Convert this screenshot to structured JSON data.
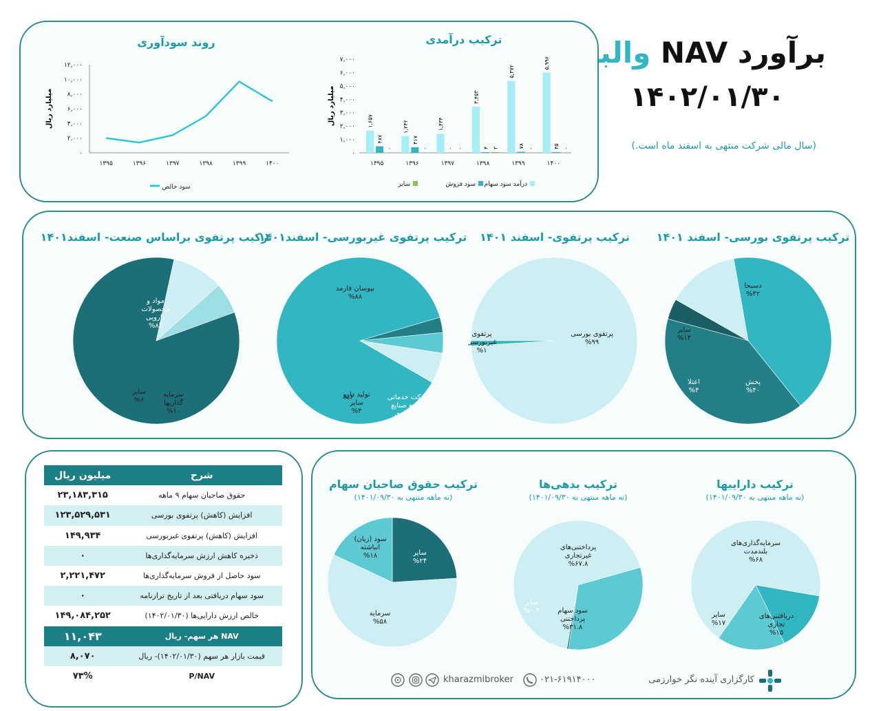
{
  "header": {
    "title_part1": "برآورد NAV",
    "title_part2": "والبر",
    "date": "۱۴۰۲/۰۱/۳۰",
    "note": "(سال مالی شرکت منتهی به اسفند ماه است.)"
  },
  "colors": {
    "dark": "#1d6f77",
    "teal": "#31b6c2",
    "light": "#cdeef2",
    "mid": "#5cc9d3",
    "green": "#8bc34a",
    "line": "#35c3d6"
  },
  "chart_data": [
    {
      "id": "profit_trend",
      "type": "line",
      "title": "روند سودآوری",
      "ylabel": "میلیارد ریال",
      "ylim": [
        0,
        12000
      ],
      "yticks": [
        "۰",
        "۲,۰۰۰",
        "۴,۰۰۰",
        "۶,۰۰۰",
        "۸,۰۰۰",
        "۱۰,۰۰۰",
        "۱۲,۰۰۰"
      ],
      "categories": [
        "۱۳۹۵",
        "۱۳۹۶",
        "۱۳۹۷",
        "۱۳۹۸",
        "۱۳۹۹",
        "۱۴۰۰"
      ],
      "series": [
        {
          "name": "سود خالص",
          "values": [
            2000,
            1400,
            2400,
            5000,
            9700,
            7000
          ]
        }
      ]
    },
    {
      "id": "income_composition",
      "type": "bar",
      "title": "ترکیب درآمدی",
      "ylabel": "میلیارد ریال",
      "ylim": [
        0,
        7000
      ],
      "yticks": [
        "۰",
        "۱,۰۰۰",
        "۲,۰۰۰",
        "۳,۰۰۰",
        "۴,۰۰۰",
        "۵,۰۰۰",
        "۶,۰۰۰",
        "۷,۰۰۰"
      ],
      "categories": [
        "۱۳۹۵",
        "۱۳۹۶",
        "۱۳۹۷",
        "۱۳۹۸",
        "۱۳۹۹",
        "۱۴۰۰"
      ],
      "series": [
        {
          "name": "درآمد سود سهام",
          "values": [
            1657,
            1242,
            1434,
            3453,
            5372,
            5996
          ],
          "labels": [
            "۱,۶۵۷",
            "۱,۲۴۲",
            "۱,۴۳۴",
            "۳,۴۵۳",
            "۵,۳۷۲",
            "۵,۹۹۶"
          ]
        },
        {
          "name": "سود فروش",
          "values": [
            487,
            417,
            0,
            4,
            78,
            45
          ],
          "labels": [
            "۴۸۷",
            "۴۱۷",
            "۰",
            "۴",
            "۷۸",
            "۴۵"
          ]
        },
        {
          "name": "سایر",
          "values": [
            0,
            0,
            0,
            2,
            0,
            0
          ],
          "labels": [
            "۰",
            "۰",
            "۰",
            "۲",
            "۰",
            "۰"
          ]
        }
      ]
    },
    {
      "id": "listed_portfolio",
      "type": "pie",
      "title": "ترکیب پرتفوی بورسی- اسفند ۱۴۰۱",
      "slices": [
        {
          "label": "دسبحا",
          "pct": "%۴۲",
          "value": 42,
          "color": "#31b6c2"
        },
        {
          "label": "پخش",
          "pct": "%۴۰",
          "value": 40,
          "color": "#237f87"
        },
        {
          "label": "اعتلا",
          "pct": "%۴",
          "value": 4,
          "color": "#1a5d62"
        },
        {
          "label": "سایر",
          "pct": "%۱۴",
          "value": 14,
          "color": "#cdeef2"
        }
      ]
    },
    {
      "id": "portfolio",
      "type": "pie",
      "title": "ترکیب پرتفوی- اسفند ۱۴۰۱",
      "slices": [
        {
          "label": "پرتفوی بورسی",
          "pct": "%۹۹",
          "value": 99,
          "color": "#cdeef2"
        },
        {
          "label": "پرتفوی غیربورسی",
          "pct": "%۱",
          "value": 1,
          "color": "#31b6c2"
        }
      ]
    },
    {
      "id": "unlisted_portfolio",
      "type": "pie",
      "title": "ترکیب پرتفوی غیربورسی- اسفند۱۴۰۱",
      "slices": [
        {
          "label": "بیوسان فارمد",
          "pct": "%۸۸",
          "value": 88,
          "color": "#31b6c2"
        },
        {
          "label": "شرکت خدماتی مجتمع صنایع داروسازی",
          "pct": "%۳",
          "value": 3,
          "color": "#237f87"
        },
        {
          "label": "تولید دارو سایر",
          "pct": "%۴",
          "value": 4,
          "color": "#5cc9d3"
        },
        {
          "label": "",
          "pct": "%۶",
          "value": 6,
          "color": "#cdeef2"
        }
      ]
    },
    {
      "id": "industry_portfolio",
      "type": "pie",
      "title": "ترکیب پرتفوی براساس صنعت- اسفند۱۴۰۱",
      "slices": [
        {
          "label": "مواد و محصولات دارویی",
          "pct": "%۸۴",
          "value": 84,
          "color": "#1d6f77"
        },
        {
          "label": "سرمایه گذاریها",
          "pct": "%۱۰",
          "value": 10,
          "color": "#cdeef2"
        },
        {
          "label": "سایر",
          "pct": "%۶",
          "value": 6,
          "color": "#9ddde4"
        }
      ]
    },
    {
      "id": "assets",
      "type": "pie",
      "title": "ترکیب داراییها",
      "subtitle": "(نه ماهه منتهی به ۱۴۰۱/۰۹/۳۰)",
      "slices": [
        {
          "label": "سرمایه‌گذاری‌های بلندمدت",
          "pct": "%۶۸",
          "value": 68,
          "color": "#cdeef2"
        },
        {
          "label": "دریافتنی‌های تجاری",
          "pct": "%۱۵",
          "value": 15,
          "color": "#31b6c2"
        },
        {
          "label": "سایر",
          "pct": "%۱۷",
          "value": 17,
          "color": "#5cc9d3"
        }
      ]
    },
    {
      "id": "liabilities",
      "type": "pie",
      "title": "ترکیب بدهی‌ها",
      "subtitle": "(نه ماهه منتهی به ۱۴۰۱/۰۹/۳۰)",
      "slices": [
        {
          "label": "پرداختنی‌های غیرتجاری",
          "pct": "%۶۷.۸",
          "value": 67.8,
          "color": "#cdeef2"
        },
        {
          "label": "سود سهام پرداختنی",
          "pct": "%۳۱.۸",
          "value": 31.8,
          "color": "#5cc9d3"
        },
        {
          "label": "سایر",
          "pct": "%۰.۴",
          "value": 0.4,
          "color": "#237f87"
        }
      ]
    },
    {
      "id": "equity",
      "type": "pie",
      "title": "ترکیب حقوق صاحبان سهام",
      "subtitle": "(نه ماهه منتهی به ۱۴۰۱/۰۹/۳۰)",
      "slices": [
        {
          "label": "سایر",
          "pct": "%۲۴",
          "value": 24,
          "color": "#1d6f77"
        },
        {
          "label": "سرمایه",
          "pct": "%۵۸",
          "value": 58,
          "color": "#cdeef2"
        },
        {
          "label": "سود (زیان) انباشته",
          "pct": "%۱۸",
          "value": 18,
          "color": "#5cc9d3"
        }
      ]
    }
  ],
  "nav_table": {
    "headers": [
      "شرح",
      "میلیون ریال"
    ],
    "rows": [
      {
        "label": "حقوق صاحبان سهام ۹ ماهه",
        "value": "۲۳,۱۸۳,۳۱۵"
      },
      {
        "label": "افزایش (کاهش) پرتفوی بورسی",
        "value": "۱۲۳,۵۲۹,۵۳۱"
      },
      {
        "label": "افزایش (کاهش) پرتفوی غیربورسی",
        "value": "۱۴۹,۹۳۴"
      },
      {
        "label": "ذخیره کاهش ارزش سرمایه‌گذاری‌ها",
        "value": "۰"
      },
      {
        "label": "سود حاصل از فروش سرمایه‌گذاری‌ها",
        "value": "۲,۲۲۱,۴۷۲"
      },
      {
        "label": "سود سهام دریافتی بعد از تاریخ ترازنامه",
        "value": "۰"
      },
      {
        "label": "خالص ارزش دارایی‌ها (۱۴۰۲/۰۱/۳۰)",
        "value": "۱۴۹,۰۸۴,۲۵۲"
      },
      {
        "label": "NAV هر سهم- ریال",
        "value": "۱۱,۰۴۳"
      },
      {
        "label": "قیمت بازار هر سهم (۱۴۰۲/۰۱/۳۰)- ریال",
        "value": "۸,۰۷۰"
      },
      {
        "label": "P/NAV",
        "value": "۷۳%"
      }
    ]
  },
  "footer": {
    "broker": "کارگزاری آینده نگر خوارزمی",
    "phone": "۰۲۱-۶۱۹۱۴۰۰۰",
    "handle": "kharazmibroker"
  }
}
